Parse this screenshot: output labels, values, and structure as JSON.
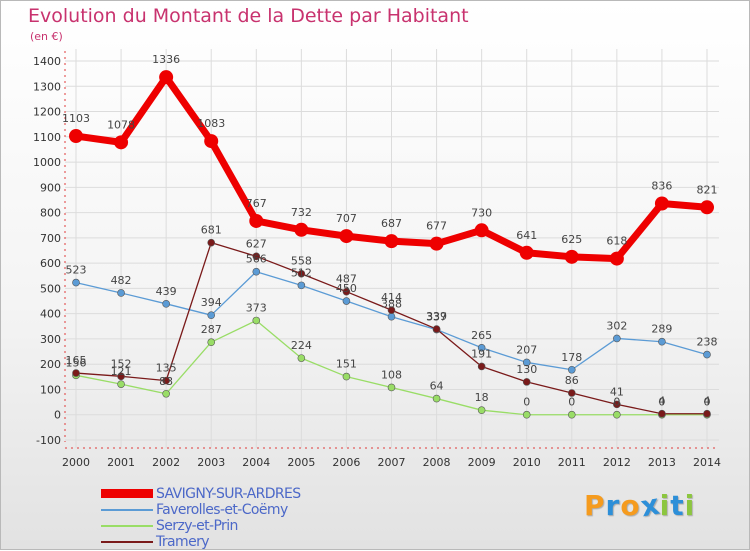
{
  "title": "Evolution du Montant de la Dette par Habitant",
  "subtitle": "(en €)",
  "logo": {
    "text": "Proxiti",
    "letters": [
      "P",
      "r",
      "o",
      "x",
      "i",
      "t",
      "i"
    ],
    "colors": [
      "#f59b1e",
      "#2d8fd8",
      "#f59b1e",
      "#2d8fd8",
      "#8cc63f",
      "#2d8fd8",
      "#8cc63f"
    ]
  },
  "chart_data": {
    "type": "line",
    "title": "Evolution du Montant de la Dette par Habitant",
    "ylabel": "(en €)",
    "xlabel": "",
    "ylim": [
      -100,
      1400
    ],
    "yticks": [
      -100,
      0,
      100,
      200,
      300,
      400,
      500,
      600,
      700,
      800,
      900,
      1000,
      1100,
      1200,
      1300,
      1400
    ],
    "categories": [
      "2000",
      "2001",
      "2002",
      "2003",
      "2004",
      "2005",
      "2006",
      "2007",
      "2008",
      "2009",
      "2010",
      "2011",
      "2012",
      "2013",
      "2014"
    ],
    "series": [
      {
        "name": "SAVIGNY-SUR-ARDRES",
        "color": "#ee0000",
        "values": [
          1103,
          1078,
          1336,
          1083,
          767,
          732,
          707,
          687,
          677,
          730,
          641,
          625,
          618,
          836,
          821
        ]
      },
      {
        "name": "Faverolles-et-Coëmy",
        "color": "#5b9bd5",
        "values": [
          523,
          482,
          439,
          394,
          566,
          512,
          450,
          388,
          337,
          265,
          207,
          178,
          302,
          289,
          238
        ]
      },
      {
        "name": "Serzy-et-Prin",
        "color": "#99dd66",
        "values": [
          156,
          121,
          83,
          287,
          373,
          224,
          151,
          108,
          64,
          18,
          0,
          0,
          0,
          0,
          0
        ]
      },
      {
        "name": "Tramery",
        "color": "#7a1a1a",
        "values": [
          165,
          152,
          135,
          681,
          627,
          558,
          487,
          414,
          339,
          191,
          130,
          86,
          41,
          4,
          4
        ]
      }
    ],
    "data_labels": [
      {
        "series": 0,
        "texts": [
          "1103",
          "1078",
          "1336",
          "1083",
          "767",
          "732",
          "707",
          "687",
          "677",
          "730",
          "641",
          "625",
          "618",
          "836",
          "821"
        ]
      },
      {
        "series": 1,
        "texts": [
          "523",
          "482",
          "439",
          "394",
          "566",
          "512",
          "450",
          "388",
          "337",
          "265",
          "207",
          "178",
          "302",
          "289",
          "238"
        ]
      },
      {
        "series": 2,
        "texts": [
          "156",
          "121",
          "83",
          "287",
          "373",
          "224",
          "151",
          "108",
          "64",
          "18",
          "0",
          "0",
          "0",
          "0",
          "0"
        ]
      },
      {
        "series": 3,
        "texts": [
          "165",
          "152",
          "135",
          "681",
          "627",
          "558",
          "487",
          "414",
          "339",
          "191",
          "130",
          "86",
          "41",
          "4",
          "4"
        ]
      }
    ],
    "legend_position": "bottom-left"
  }
}
